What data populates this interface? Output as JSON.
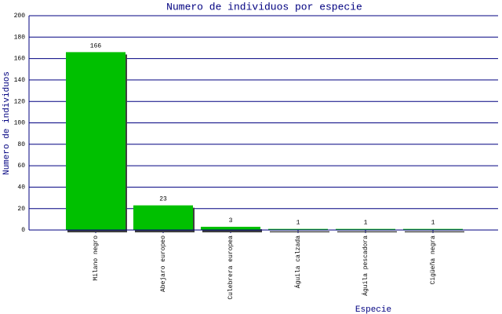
{
  "chart_data": {
    "type": "bar",
    "title": "Numero de individuos por especie",
    "x_label": "Especie",
    "y_label": "Numero de individuos",
    "categories": [
      "Milano negro",
      "Abejaro europeo",
      "Culebrera europea",
      "Águila calzada",
      "Águila pescadora",
      "Cigüeña negra"
    ],
    "values": [
      166,
      23,
      3,
      1,
      1,
      1
    ],
    "color": "#00c000",
    "ylim": [
      0,
      200
    ],
    "yticks": [
      0,
      20,
      40,
      60,
      80,
      100,
      120,
      140,
      160,
      180,
      200
    ],
    "grid": true
  }
}
